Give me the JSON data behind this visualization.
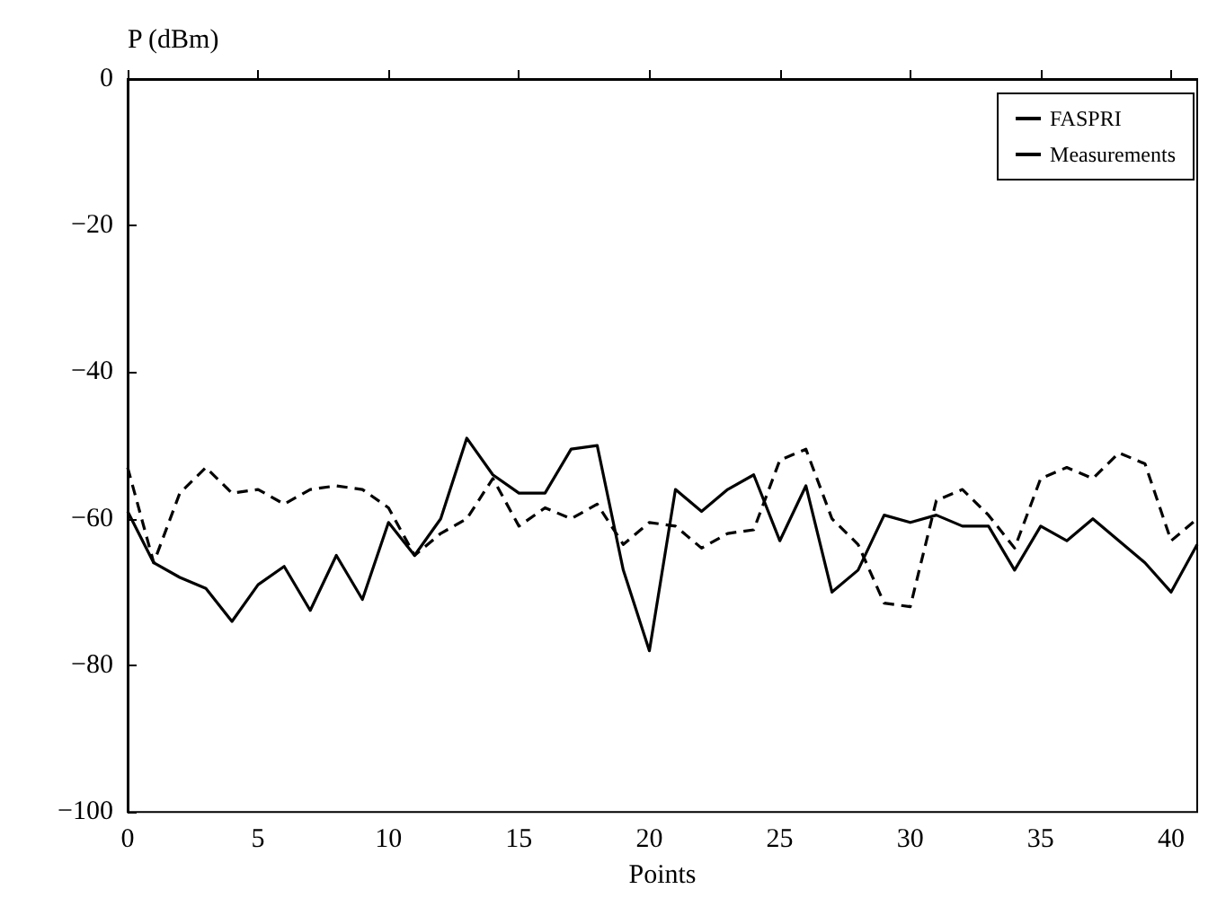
{
  "chart_data": {
    "type": "line",
    "xlabel": "Points",
    "ylabel": "P (dBm)",
    "x": [
      0,
      1,
      2,
      3,
      4,
      5,
      6,
      7,
      8,
      9,
      10,
      11,
      12,
      13,
      14,
      15,
      16,
      17,
      18,
      19,
      20,
      21,
      22,
      23,
      24,
      25,
      26,
      27,
      28,
      29,
      30,
      31,
      32,
      33,
      34,
      35,
      36,
      37,
      38,
      39,
      40,
      41
    ],
    "series": [
      {
        "name": "FASPRI",
        "color": "#000000",
        "line_style": "solid",
        "values": [
          -59,
          -66,
          -68,
          -69.5,
          -74,
          -69,
          -66.5,
          -72.5,
          -65,
          -71,
          -60.5,
          -65,
          -60,
          -49,
          -54,
          -56.5,
          -56.5,
          -50.5,
          -50,
          -67,
          -78,
          -56,
          -59,
          -56,
          -54,
          -63,
          -55.5,
          -70,
          -67,
          -59.5,
          -60.5,
          -59.5,
          -61,
          -61,
          -67,
          -61,
          -63,
          -60,
          -63,
          -66,
          -70,
          -63.5
        ]
      },
      {
        "name": "Measurements",
        "color": "#000000",
        "line_style": "dashed",
        "values": [
          -53,
          -66,
          -56.5,
          -53,
          -56.5,
          -56,
          -58,
          -56,
          -55.5,
          -56,
          -58.5,
          -65,
          -62,
          -60,
          -54.5,
          -61,
          -58.5,
          -60,
          -58,
          -63.5,
          -60.5,
          -61,
          -64,
          -62,
          -61.5,
          -52,
          -50.5,
          -60,
          -63.5,
          -71.5,
          -72,
          -57.5,
          -56,
          -59.5,
          -64,
          -54.5,
          -53,
          -54.5,
          -51,
          -52.5,
          -63,
          -60
        ]
      }
    ],
    "xlim": [
      0,
      41
    ],
    "xticks": [
      0,
      5,
      10,
      15,
      20,
      25,
      30,
      35,
      40
    ],
    "ylim": [
      -100,
      0
    ],
    "yticks": [
      -100,
      -80,
      -60,
      -40,
      -20,
      0
    ],
    "grid": false,
    "legend": "top right",
    "marker": "none"
  }
}
